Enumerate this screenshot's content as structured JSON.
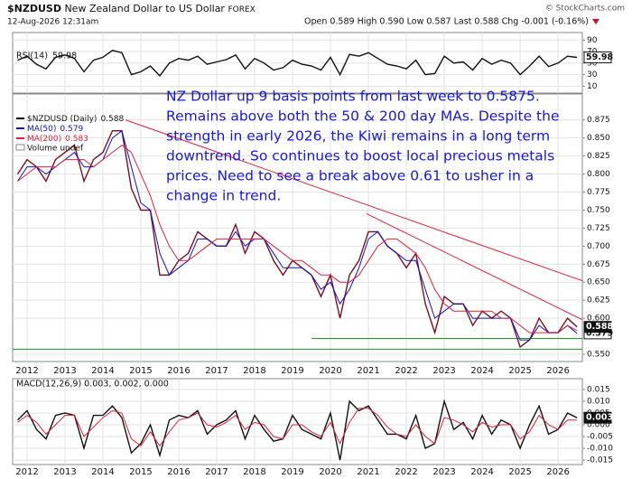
{
  "header": {
    "symbol": "$NZDUSD",
    "name": "New Zealand Dollar to US Dollar",
    "exchange": "FOREX",
    "copyright": "© StockCharts.com",
    "date": "12-Aug-2026 12:31am",
    "quote": "Open 0.589 High 0.590 Low 0.587 Last 0.588 Chg -0.001 (-0.16%)"
  },
  "chart_data": {
    "type": "stock",
    "xlim": [
      2011.62,
      2026.64
    ],
    "xticks": [
      2012,
      2013,
      2014,
      2015,
      2016,
      2017,
      2018,
      2019,
      2020,
      2021,
      2022,
      2023,
      2024,
      2025,
      2026
    ],
    "grid": true,
    "x": [
      2011.75,
      2012,
      2012.25,
      2012.5,
      2012.75,
      2013,
      2013.25,
      2013.5,
      2013.75,
      2014,
      2014.25,
      2014.5,
      2014.75,
      2015,
      2015.25,
      2015.5,
      2015.75,
      2016,
      2016.25,
      2016.5,
      2016.75,
      2017,
      2017.25,
      2017.5,
      2017.75,
      2018,
      2018.25,
      2018.5,
      2018.75,
      2019,
      2019.25,
      2019.5,
      2019.75,
      2020,
      2020.25,
      2020.5,
      2020.75,
      2021,
      2021.25,
      2021.5,
      2021.75,
      2022,
      2022.25,
      2022.5,
      2022.75,
      2023,
      2023.25,
      2023.5,
      2023.75,
      2024,
      2024.25,
      2024.5,
      2024.75,
      2025,
      2025.25,
      2025.5,
      2025.75,
      2026,
      2026.25,
      2026.5
    ],
    "panels": [
      {
        "title": "RSI(14)",
        "ylim": [
          -2,
          103
        ],
        "yticks": [
          10,
          30,
          50,
          70,
          90
        ],
        "series": [
          {
            "name": "RSI(14)",
            "color": "#111111",
            "values": [
              55,
              62,
              48,
              40,
              60,
              64,
              58,
              35,
              55,
              60,
              72,
              68,
              30,
              35,
              45,
              28,
              50,
              58,
              55,
              62,
              48,
              52,
              56,
              64,
              40,
              58,
              50,
              38,
              42,
              55,
              48,
              45,
              38,
              60,
              30,
              65,
              62,
              68,
              58,
              48,
              45,
              40,
              55,
              30,
              32,
              62,
              50,
              52,
              38,
              58,
              48,
              55,
              50,
              30,
              45,
              62,
              44,
              50,
              62,
              59.98
            ]
          }
        ]
      },
      {
        "title": "$NZDUSD (Daily)",
        "ylim": [
          0.54,
          0.911
        ],
        "yticks": [
          {
            "value": 0.55,
            "label": "0.550"
          },
          {
            "value": 0.6,
            "label": "0.600"
          },
          0.625,
          {
            "value": 0.65,
            "label": "0.650"
          },
          0.675,
          {
            "value": 0.7,
            "label": "0.700"
          },
          0.725,
          {
            "value": 0.75,
            "label": "0.750"
          },
          0.775,
          {
            "value": 0.8,
            "label": "0.800"
          },
          0.825,
          {
            "value": 0.85,
            "label": "0.850"
          },
          0.875
        ],
        "series": [
          {
            "name": "$NZDUSD (Daily)",
            "color": "#7a1020",
            "values": [
              0.8,
              0.82,
              0.81,
              0.79,
              0.82,
              0.83,
              0.84,
              0.79,
              0.82,
              0.83,
              0.86,
              0.86,
              0.78,
              0.75,
              0.75,
              0.66,
              0.66,
              0.68,
              0.69,
              0.72,
              0.71,
              0.7,
              0.7,
              0.73,
              0.69,
              0.72,
              0.71,
              0.68,
              0.66,
              0.68,
              0.67,
              0.66,
              0.63,
              0.66,
              0.6,
              0.66,
              0.68,
              0.72,
              0.72,
              0.7,
              0.69,
              0.67,
              0.69,
              0.62,
              0.58,
              0.63,
              0.62,
              0.62,
              0.59,
              0.61,
              0.6,
              0.61,
              0.6,
              0.56,
              0.57,
              0.6,
              0.58,
              0.58,
              0.6,
              0.588
            ]
          },
          {
            "name": "MA(50)",
            "color": "#1010c8",
            "values": [
              0.79,
              0.81,
              0.81,
              0.8,
              0.81,
              0.82,
              0.83,
              0.81,
              0.81,
              0.82,
              0.85,
              0.86,
              0.81,
              0.76,
              0.75,
              0.69,
              0.66,
              0.67,
              0.68,
              0.71,
              0.71,
              0.7,
              0.7,
              0.72,
              0.7,
              0.71,
              0.71,
              0.69,
              0.67,
              0.67,
              0.67,
              0.66,
              0.64,
              0.65,
              0.62,
              0.64,
              0.67,
              0.71,
              0.72,
              0.7,
              0.69,
              0.68,
              0.68,
              0.64,
              0.6,
              0.61,
              0.62,
              0.62,
              0.6,
              0.6,
              0.6,
              0.6,
              0.6,
              0.57,
              0.57,
              0.59,
              0.58,
              0.58,
              0.59,
              0.579
            ]
          },
          {
            "name": "MA(200)",
            "color": "#e0203a",
            "values": [
              0.79,
              0.8,
              0.81,
              0.81,
              0.81,
              0.82,
              0.82,
              0.82,
              0.81,
              0.82,
              0.83,
              0.84,
              0.83,
              0.8,
              0.77,
              0.73,
              0.7,
              0.68,
              0.68,
              0.69,
              0.7,
              0.71,
              0.71,
              0.71,
              0.71,
              0.71,
              0.71,
              0.7,
              0.69,
              0.68,
              0.68,
              0.67,
              0.66,
              0.66,
              0.65,
              0.65,
              0.66,
              0.68,
              0.7,
              0.71,
              0.71,
              0.7,
              0.69,
              0.67,
              0.64,
              0.62,
              0.61,
              0.61,
              0.61,
              0.61,
              0.61,
              0.6,
              0.6,
              0.59,
              0.58,
              0.58,
              0.58,
              0.58,
              0.59,
              0.583
            ]
          }
        ],
        "volume_label": "Volume undef",
        "lines": [
          {
            "x": [
              2014.6,
              2026.64
            ],
            "y": [
              0.875,
              0.652
            ],
            "color": "#e0203a"
          },
          {
            "x": [
              2020.95,
              2026.64
            ],
            "y": [
              0.745,
              0.598
            ],
            "color": "#e0203a"
          },
          {
            "x": [
              2019.5,
              2026.64
            ],
            "y": [
              0.572,
              0.572
            ],
            "color": "#1a9a1a"
          },
          {
            "x": [
              2011.62,
              2026.64
            ],
            "y": [
              0.557,
              0.557
            ],
            "color": "#1a9a1a"
          }
        ],
        "annotation": [
          "NZ Dollar up 9 basis points from last week to 0.5875.",
          "Remains above both the 50 & 200 day MAs. Despite the",
          "strength in early 2026, the Kiwi remains in a long term",
          "downtrend. So continues to boost local precious metals",
          "prices. Need to see a break above 0.61 to usher in a",
          "change in trend."
        ]
      },
      {
        "title": "MACD(12,26,9) 0.003, 0.002, 0.000",
        "ylim": [
          -0.0169,
          0.0196
        ],
        "yticks": [
          0.015,
          {
            "value": 0.01,
            "label": "0.010"
          },
          0.005,
          {
            "value": 0,
            "label": "0.000"
          },
          -0.005,
          {
            "value": -0.01,
            "label": "-0.010"
          },
          -0.015
        ],
        "series": [
          {
            "name": "MACD",
            "color": "#111111",
            "values": [
              0.002,
              0.006,
              -0.002,
              -0.006,
              0.004,
              0.005,
              0.004,
              -0.01,
              0.004,
              0.004,
              0.008,
              0.003,
              -0.012,
              -0.008,
              0.0,
              -0.013,
              0.002,
              0.004,
              0.003,
              0.006,
              -0.004,
              0.0,
              0.002,
              0.006,
              -0.006,
              0.004,
              -0.002,
              -0.007,
              -0.006,
              0.004,
              -0.002,
              -0.004,
              -0.006,
              0.005,
              -0.015,
              0.01,
              0.006,
              0.008,
              0.002,
              -0.004,
              -0.004,
              -0.006,
              0.004,
              -0.01,
              -0.008,
              0.01,
              -0.002,
              0.001,
              -0.006,
              0.004,
              -0.004,
              0.002,
              0.0,
              -0.01,
              0.0,
              0.008,
              -0.004,
              -0.002,
              0.005,
              0.003
            ]
          },
          {
            "name": "Signal",
            "color": "#e0203a",
            "values": [
              0.001,
              0.004,
              0.001,
              -0.004,
              0.0,
              0.004,
              0.004,
              -0.005,
              -0.001,
              0.003,
              0.006,
              0.005,
              -0.006,
              -0.009,
              -0.003,
              -0.009,
              -0.003,
              0.002,
              0.003,
              0.005,
              0.0,
              -0.001,
              0.001,
              0.004,
              -0.002,
              0.001,
              0.0,
              -0.005,
              -0.006,
              0.0,
              0.0,
              -0.003,
              -0.005,
              0.001,
              -0.008,
              0.001,
              0.007,
              0.007,
              0.004,
              -0.001,
              -0.004,
              -0.005,
              0.0,
              -0.005,
              -0.008,
              0.003,
              0.002,
              0.0,
              -0.003,
              0.001,
              -0.001,
              0.0,
              0.0,
              -0.006,
              -0.003,
              0.004,
              0.0,
              -0.002,
              0.002,
              0.002
            ]
          }
        ]
      }
    ]
  }
}
